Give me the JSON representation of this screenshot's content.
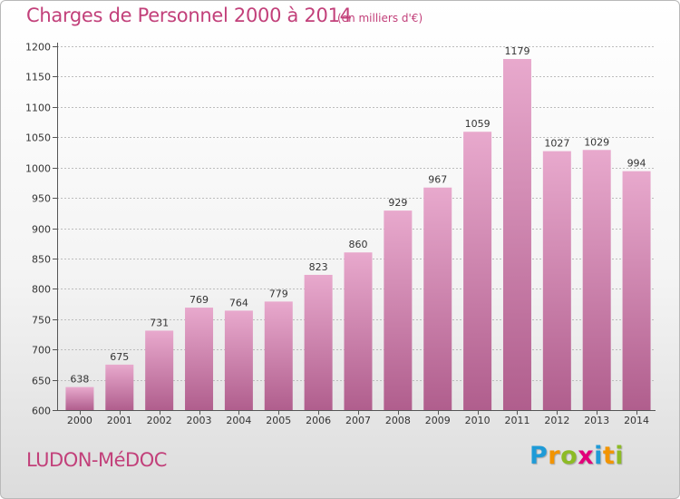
{
  "header": {
    "title": "Charges de Personnel 2000 à 2014",
    "subtitle": "(en milliers d'€)"
  },
  "footer": {
    "place": "LUDON-MéDOC",
    "brand_letters": [
      "P",
      "r",
      "o",
      "x",
      "i",
      "t",
      "i"
    ]
  },
  "colors": {
    "title": "#c2407a",
    "bar_top": "#e8a9cd",
    "bar_bottom": "#b05e8d",
    "brand": [
      "#1f9bd7",
      "#f29400",
      "#8dbb25",
      "#e2007a",
      "#1f9bd7",
      "#f29400",
      "#8dbb25"
    ]
  },
  "chart_data": {
    "type": "bar",
    "title": "Charges de Personnel 2000 à 2014",
    "subtitle": "(en milliers d'€)",
    "xlabel": "",
    "ylabel": "",
    "categories": [
      "2000",
      "2001",
      "2002",
      "2003",
      "2004",
      "2005",
      "2006",
      "2007",
      "2008",
      "2009",
      "2010",
      "2011",
      "2012",
      "2013",
      "2014"
    ],
    "values": [
      638,
      675,
      731,
      769,
      764,
      779,
      823,
      860,
      929,
      967,
      1059,
      1179,
      1027,
      1029,
      994
    ],
    "ylim": [
      600,
      1200
    ],
    "yticks": [
      600,
      650,
      700,
      750,
      800,
      850,
      900,
      950,
      1000,
      1050,
      1100,
      1150,
      1200
    ],
    "grid": "horizontal dashed",
    "legend": "none"
  }
}
